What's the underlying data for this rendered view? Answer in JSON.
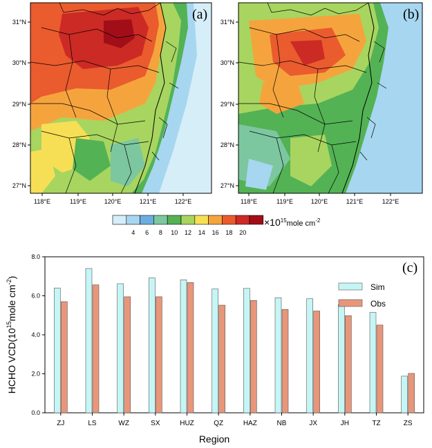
{
  "maps": {
    "panels": [
      {
        "label": "(a)",
        "field": "simulated HCHO VCD"
      },
      {
        "label": "(b)",
        "field": "observed HCHO VCD"
      }
    ],
    "lat_ticks": [
      "27°N",
      "28°N",
      "29°N",
      "30°N",
      "31°N"
    ],
    "lon_ticks": [
      "118°E",
      "119°E",
      "120°E",
      "121°E",
      "122°E"
    ]
  },
  "colorbar": {
    "colors": [
      "#d6eef8",
      "#a7d6f0",
      "#6aaee0",
      "#7cc7a0",
      "#53b254",
      "#a7d560",
      "#f7df55",
      "#f5a43d",
      "#ea5b2e",
      "#cc2a25",
      "#a20e18"
    ],
    "tick_labels": [
      "4",
      "6",
      "8",
      "10",
      "12",
      "14",
      "16",
      "18",
      "20"
    ],
    "unit_prefix": "×10",
    "unit_exp": "15",
    "unit_suffix": "mole cm",
    "unit_exp2": "-2"
  },
  "chart_data": {
    "type": "bar",
    "panel_label": "(c)",
    "categories": [
      "ZJ",
      "LS",
      "WZ",
      "SX",
      "HUZ",
      "QZ",
      "HAZ",
      "NB",
      "JX",
      "JH",
      "TZ",
      "ZS"
    ],
    "series": [
      {
        "name": "Sim",
        "color": "#c6f5f5",
        "values": [
          6.4,
          7.4,
          6.62,
          6.92,
          6.82,
          6.35,
          6.38,
          5.9,
          5.85,
          5.55,
          5.15,
          1.88
        ]
      },
      {
        "name": "Obs",
        "color": "#e8967a",
        "values": [
          5.7,
          6.56,
          5.95,
          5.95,
          6.68,
          5.52,
          5.76,
          5.3,
          5.22,
          4.98,
          4.5,
          2.02
        ]
      }
    ],
    "xlabel": "Region",
    "ylabel": "HCHO VCD(10",
    "ylabel_exp": "15",
    "ylabel_unit": "mole cm",
    "ylabel_exp2": "-2",
    "ylabel_close": ")",
    "ylim": [
      0,
      8
    ],
    "yticks": [
      "0.0",
      "2.0",
      "4.0",
      "6.0",
      "8.0"
    ],
    "legend_position": "top-right"
  }
}
